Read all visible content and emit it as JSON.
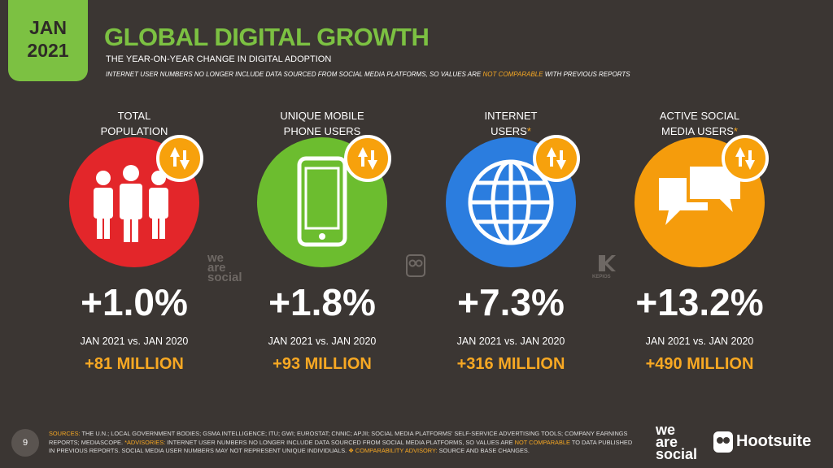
{
  "badge": {
    "line1": "JAN",
    "line2": "2021"
  },
  "header": {
    "title": "GLOBAL DIGITAL GROWTH",
    "subtitle": "THE YEAR-ON-YEAR CHANGE IN DIGITAL ADOPTION",
    "note": [
      {
        "text": "INTERNET USER NUMBERS NO LONGER INCLUDE DATA SOURCED FROM SOCIAL MEDIA PLATFORMS, SO VALUES ARE "
      },
      {
        "text": "NOT COMPARABLE",
        "highlight": true
      },
      {
        "text": " WITH PREVIOUS REPORTS"
      }
    ]
  },
  "cards": [
    {
      "label": [
        "TOTAL",
        "POPULATION"
      ],
      "color": "#e3262a",
      "icon": "people",
      "change_percent": "+1.0%",
      "comparison": "JAN 2021 vs. JAN 2020",
      "change_absolute": "+81 MILLION"
    },
    {
      "label": [
        "UNIQUE MOBILE",
        "PHONE USERS"
      ],
      "color": "#6cbd2f",
      "icon": "phone",
      "change_percent": "+1.8%",
      "comparison": "JAN 2021 vs. JAN 2020",
      "change_absolute": "+93 MILLION"
    },
    {
      "label": [
        "INTERNET",
        "USERS"
      ],
      "marker": "*",
      "color": "#2b7ddf",
      "icon": "globe",
      "change_percent": "+7.3%",
      "comparison": "JAN 2021 vs. JAN 2020",
      "change_absolute": "+316 MILLION"
    },
    {
      "label": [
        "ACTIVE SOCIAL",
        "MEDIA USERS"
      ],
      "marker": "*",
      "color": "#f59c0c",
      "icon": "chat",
      "change_percent": "+13.2%",
      "comparison": "JAN 2021 vs. JAN 2020",
      "change_absolute": "+490 MILLION"
    }
  ],
  "watermarks": {
    "brand": [
      "we",
      "are",
      "social"
    ],
    "kepios": "KEPIOS"
  },
  "footer": {
    "page": "9",
    "sources": [
      {
        "text": "SOURCES:",
        "highlight": true
      },
      {
        "text": " THE U.N.; LOCAL GOVERNMENT BODIES; GSMA INTELLIGENCE; ITU; GWI; EUROSTAT; CNNIC; APJII; SOCIAL MEDIA PLATFORMS' SELF-SERVICE ADVERTISING TOOLS; COMPANY EARNINGS REPORTS; MEDIASCOPE. "
      },
      {
        "text": "*ADVISORIES:",
        "highlight": true
      },
      {
        "text": " INTERNET USER NUMBERS NO LONGER INCLUDE DATA SOURCED FROM SOCIAL MEDIA PLATFORMS, SO VALUES ARE "
      },
      {
        "text": "NOT COMPARABLE",
        "highlight": true
      },
      {
        "text": " TO DATA PUBLISHED IN PREVIOUS REPORTS. SOCIAL MEDIA USER NUMBERS MAY NOT REPRESENT UNIQUE INDIVIDUALS. "
      },
      {
        "text": "❖ COMPARABILITY ADVISORY:",
        "highlight": true
      },
      {
        "text": " SOURCE AND BASE CHANGES."
      }
    ],
    "logos": {
      "we_are_social": [
        "we",
        "are",
        "social"
      ],
      "hootsuite": "Hootsuite"
    }
  }
}
